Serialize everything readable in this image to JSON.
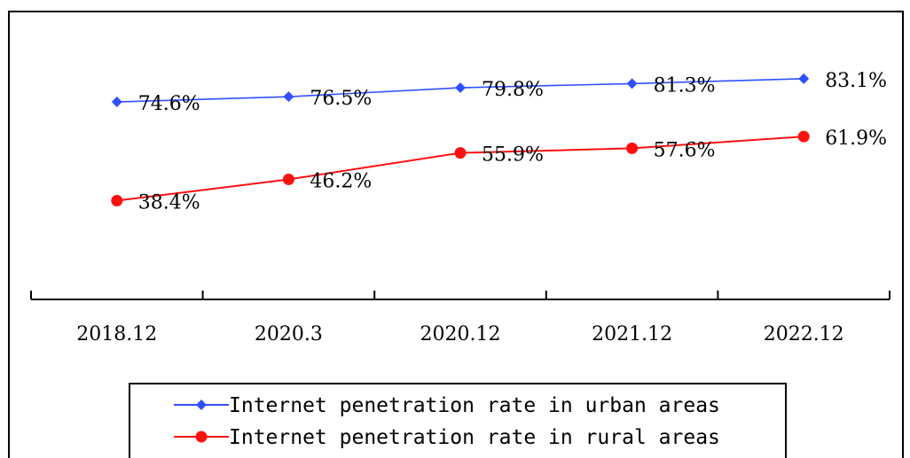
{
  "chart_data": {
    "type": "line",
    "categories": [
      "2018.12",
      "2020.3",
      "2020.12",
      "2021.12",
      "2022.12"
    ],
    "series": [
      {
        "name": "Internet penetration rate in urban areas",
        "values": [
          74.6,
          76.5,
          79.8,
          81.3,
          83.1
        ],
        "labels": [
          "74.6%",
          "76.5%",
          "79.8%",
          "81.3%",
          "83.1%"
        ],
        "color": "#3050ff",
        "marker": "diamond"
      },
      {
        "name": "Internet penetration rate in rural areas",
        "values": [
          38.4,
          46.2,
          55.9,
          57.6,
          61.9
        ],
        "labels": [
          "38.4%",
          "46.2%",
          "55.9%",
          "57.6%",
          "61.9%"
        ],
        "color": "#ff1010",
        "marker": "circle"
      }
    ],
    "ylim": [
      0,
      100
    ],
    "grid": false,
    "legend_position": "bottom"
  }
}
